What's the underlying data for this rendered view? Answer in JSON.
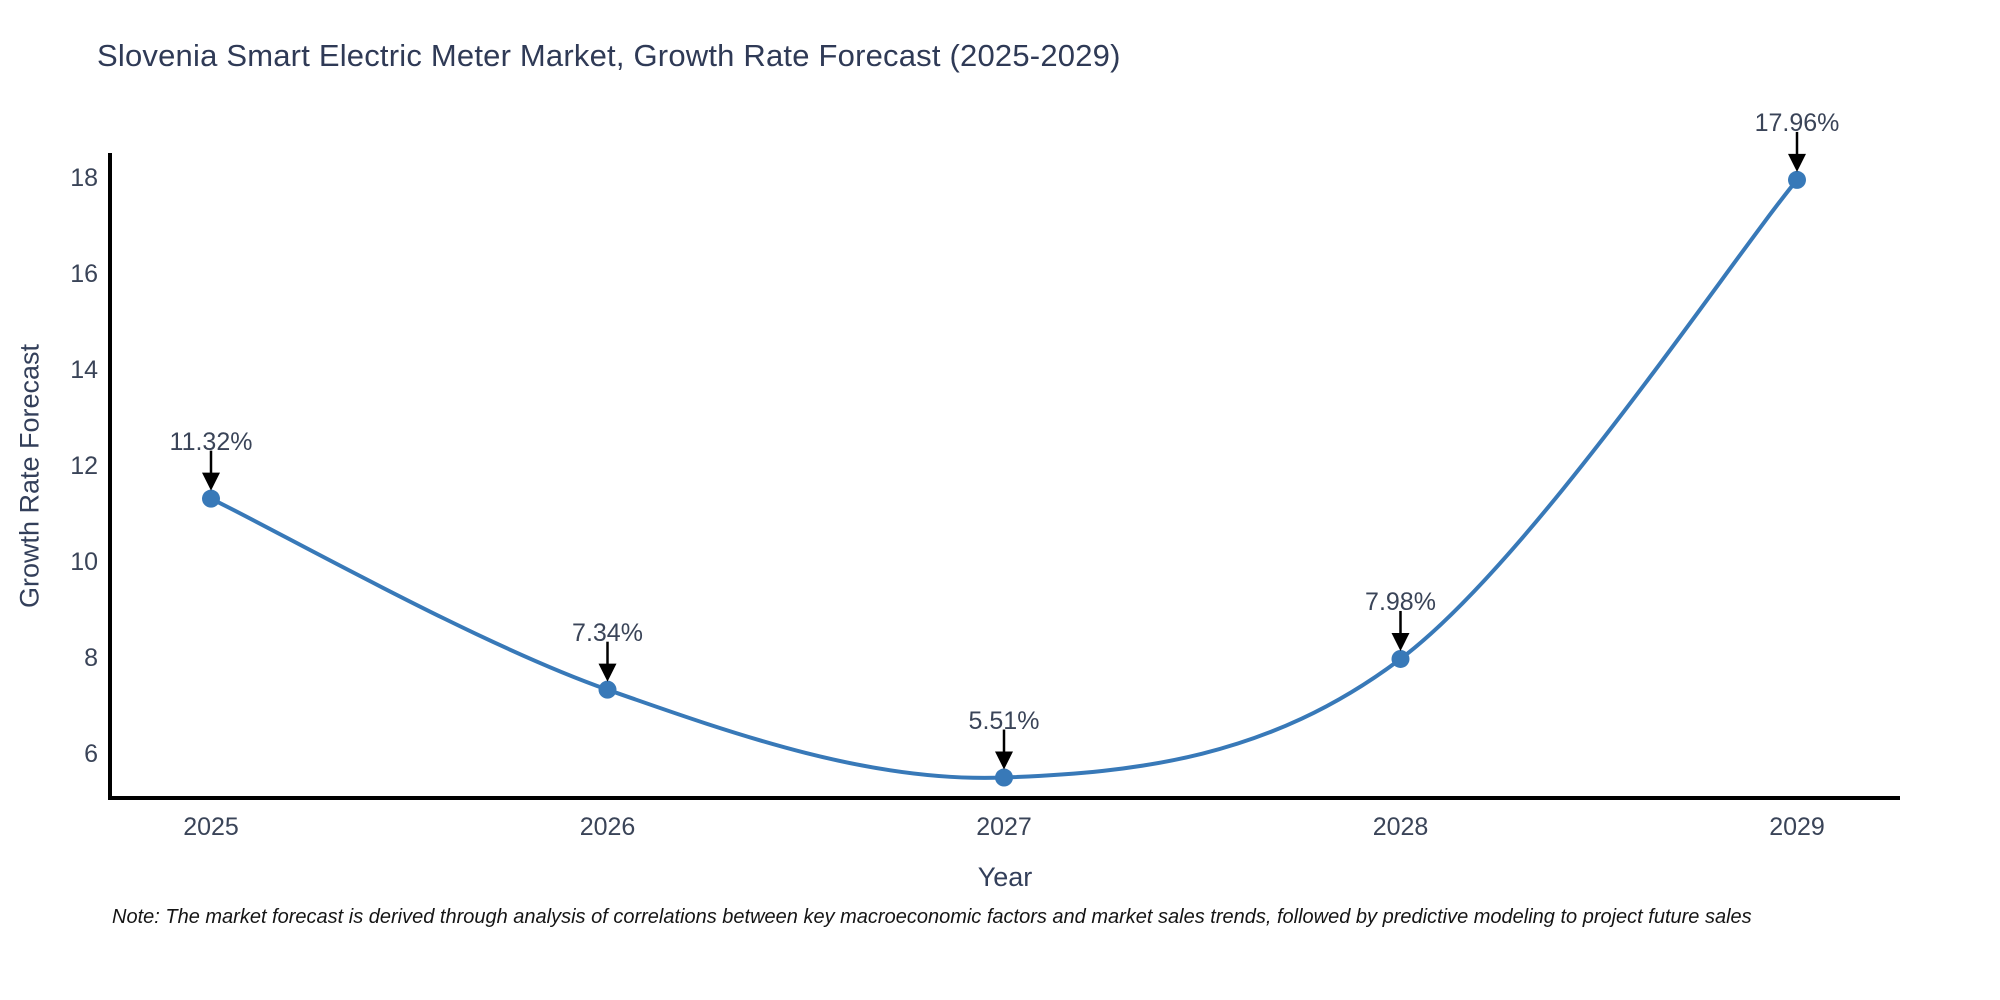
{
  "header": {
    "title": "Slovenia Smart Electric Meter Market, Growth Rate Forecast (2025-2029)"
  },
  "chart_data": {
    "type": "line",
    "title": "Slovenia Smart Electric Meter Market, Growth Rate Forecast (2025-2029)",
    "xlabel": "Year",
    "ylabel": "Growth Rate Forecast",
    "x": [
      2025,
      2026,
      2027,
      2028,
      2029
    ],
    "xticklabels": [
      "2025",
      "2026",
      "2027",
      "2028",
      "2029"
    ],
    "values": [
      11.32,
      7.34,
      5.51,
      7.98,
      17.96
    ],
    "point_labels": [
      "11.32%",
      "7.34%",
      "5.51%",
      "7.98%",
      "17.96%"
    ],
    "yticks": [
      "6",
      "8",
      "10",
      "12",
      "14",
      "16",
      "18"
    ],
    "ytick_values": [
      6,
      8,
      10,
      12,
      14,
      16,
      18
    ],
    "ylim": [
      5.05,
      18.5
    ],
    "grid": false,
    "legend": false,
    "line_color": "#3879b8",
    "marker_color": "#3879b8",
    "arrow_color": "#000000",
    "axis_color": "#000000",
    "text_color": "#3a4458",
    "title_color": "#2f3a56"
  },
  "note": {
    "text": "Note: The market forecast is derived through analysis of correlations between key macroeconomic factors and market sales trends, followed by predictive modeling to project future sales"
  }
}
